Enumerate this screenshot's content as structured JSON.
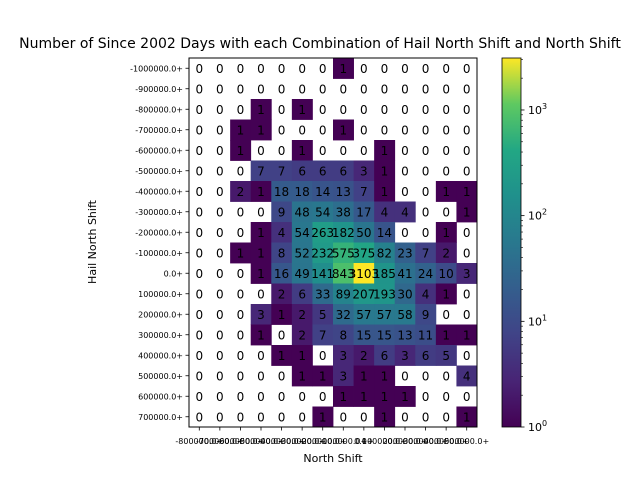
{
  "chart_data": {
    "type": "heatmap",
    "title": "Number of Since 2002 Days with each Combination of Hail North Shift and North Shift",
    "xlabel": "North Shift",
    "ylabel": "Hail North Shift",
    "x_categories": [
      "-800000.0+",
      "-700000.0+",
      "-600000.0+",
      "-500000.0+",
      "-400000.0+",
      "-300000.0+",
      "-200000.0+",
      "-100000.0+",
      "0.0+",
      "100000.0+",
      "200000.0+",
      "300000.0+",
      "400000.0+",
      "500000.0+"
    ],
    "y_categories": [
      "-1000000.0+",
      "-900000.0+",
      "-800000.0+",
      "-700000.0+",
      "-600000.0+",
      "-500000.0+",
      "-400000.0+",
      "-300000.0+",
      "-200000.0+",
      "-100000.0+",
      "0.0+",
      "100000.0+",
      "200000.0+",
      "300000.0+",
      "400000.0+",
      "500000.0+",
      "600000.0+",
      "700000.0+"
    ],
    "values": [
      [
        0,
        0,
        0,
        0,
        0,
        0,
        0,
        1,
        0,
        0,
        0,
        0,
        0,
        0
      ],
      [
        0,
        0,
        0,
        0,
        0,
        0,
        0,
        0,
        0,
        0,
        0,
        0,
        0,
        0
      ],
      [
        0,
        0,
        0,
        1,
        0,
        1,
        0,
        0,
        0,
        0,
        0,
        0,
        0,
        0
      ],
      [
        0,
        0,
        1,
        1,
        0,
        0,
        0,
        1,
        0,
        0,
        0,
        0,
        0,
        0
      ],
      [
        0,
        0,
        1,
        0,
        0,
        1,
        0,
        0,
        0,
        1,
        0,
        0,
        0,
        0
      ],
      [
        0,
        0,
        0,
        7,
        7,
        6,
        6,
        6,
        3,
        1,
        0,
        0,
        0,
        0
      ],
      [
        0,
        0,
        2,
        1,
        18,
        18,
        14,
        13,
        7,
        1,
        0,
        0,
        1,
        1
      ],
      [
        0,
        0,
        0,
        0,
        9,
        48,
        54,
        38,
        17,
        4,
        4,
        0,
        0,
        1
      ],
      [
        0,
        0,
        0,
        1,
        4,
        54,
        263,
        182,
        50,
        14,
        0,
        0,
        1,
        0
      ],
      [
        0,
        0,
        1,
        1,
        8,
        52,
        232,
        575,
        375,
        82,
        23,
        7,
        2,
        0
      ],
      [
        0,
        0,
        0,
        1,
        16,
        49,
        141,
        843,
        3103,
        185,
        41,
        24,
        10,
        3
      ],
      [
        0,
        0,
        0,
        0,
        2,
        6,
        33,
        89,
        207,
        193,
        30,
        4,
        1,
        0
      ],
      [
        0,
        0,
        0,
        3,
        1,
        2,
        5,
        32,
        57,
        57,
        58,
        9,
        0,
        0
      ],
      [
        0,
        0,
        0,
        1,
        0,
        2,
        7,
        8,
        15,
        15,
        13,
        11,
        1,
        1
      ],
      [
        0,
        0,
        0,
        0,
        1,
        1,
        0,
        3,
        2,
        6,
        3,
        6,
        5,
        0
      ],
      [
        0,
        0,
        0,
        0,
        0,
        1,
        1,
        3,
        1,
        1,
        0,
        0,
        0,
        4
      ],
      [
        0,
        0,
        0,
        0,
        0,
        0,
        0,
        1,
        1,
        1,
        1,
        0,
        0,
        0
      ],
      [
        0,
        0,
        0,
        0,
        0,
        0,
        1,
        0,
        0,
        1,
        0,
        0,
        0,
        1
      ]
    ],
    "colorbar": {
      "scale": "log",
      "colormap": "viridis",
      "range": [
        1,
        3103
      ],
      "ticks": [
        {
          "value": 1,
          "base": "10",
          "exp": "0"
        },
        {
          "value": 10,
          "base": "10",
          "exp": "1"
        },
        {
          "value": 100,
          "base": "10",
          "exp": "2"
        },
        {
          "value": 1000,
          "base": "10",
          "exp": "3"
        }
      ]
    },
    "zero_cells": "white (masked)",
    "grid": false
  }
}
